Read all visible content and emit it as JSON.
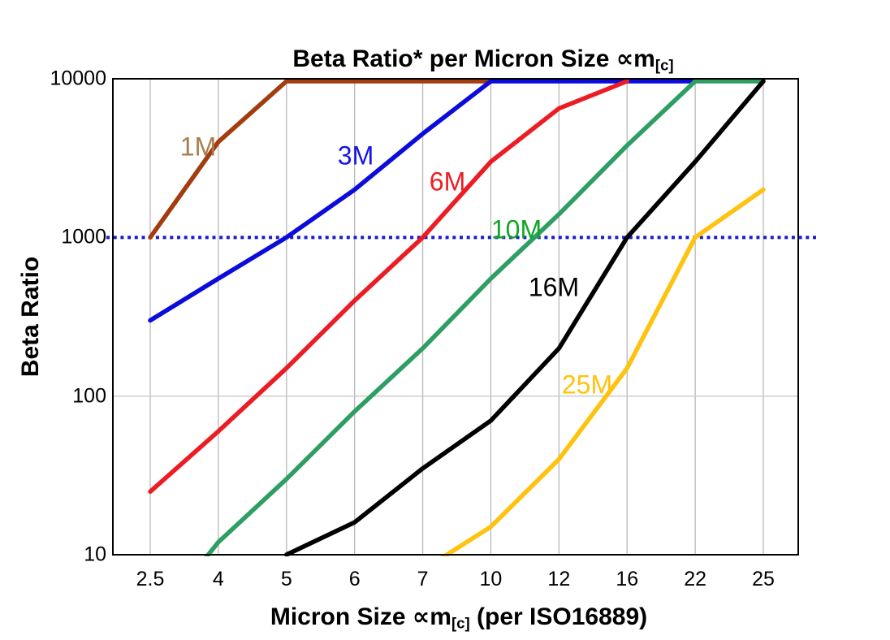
{
  "title": {
    "main": "Beta Ratio* per Micron Size ",
    "symbol": "∝m",
    "subscript": "[c]"
  },
  "axes": {
    "y": {
      "label": "Beta Ratio",
      "ticks": [
        "10000",
        "1000",
        "100",
        "10"
      ]
    },
    "x": {
      "label_pre": "Micron Size ",
      "symbol": "∝m",
      "subscript": "[c]",
      "label_post": " (per ISO16889)",
      "ticks": [
        "2.5",
        "4",
        "5",
        "6",
        "7",
        "10",
        "12",
        "16",
        "22",
        "25"
      ]
    }
  },
  "chart_data": {
    "type": "line",
    "title": "Beta Ratio* per Micron Size ∝m[c]",
    "xlabel": "Micron Size ∝m[c] (per ISO16889)",
    "ylabel": "Beta Ratio",
    "x_categories": [
      2.5,
      4,
      5,
      6,
      7,
      10,
      12,
      16,
      22,
      25
    ],
    "x_axis_type": "categorical-equal-spacing",
    "y_scale": "log",
    "ylim": [
      10,
      10000
    ],
    "grid": {
      "vertical": true,
      "horizontal_at": [
        100
      ]
    },
    "reference_line": {
      "y": 1000,
      "style": "dotted",
      "color": "#1A1ACD"
    },
    "legend_position": "inline-labels-on-lines",
    "series": [
      {
        "name": "1M",
        "color": "#A33C0F",
        "label_color": "#A87C4F",
        "values": [
          1000,
          4000,
          10000,
          10000,
          10000,
          10000,
          null,
          null,
          null,
          null
        ]
      },
      {
        "name": "3M",
        "color": "#0B0BDC",
        "label_color": "#1414E6",
        "values": [
          300,
          550,
          1000,
          2000,
          4500,
          10000,
          10000,
          10000,
          10000,
          null
        ]
      },
      {
        "name": "6M",
        "color": "#EC1C24",
        "label_color": "#EC1C24",
        "values": [
          25,
          60,
          150,
          400,
          1000,
          3000,
          6500,
          15000,
          null,
          null
        ],
        "note": "value at 16 exceeds axis max and is clipped at top"
      },
      {
        "name": "10M",
        "color": "#2E9E62",
        "label_color": "#10A626",
        "values": [
          3.5,
          12,
          30,
          80,
          200,
          550,
          1400,
          3800,
          10000,
          10000
        ],
        "note": "value at 2.5 is below axis min and is clipped at bottom"
      },
      {
        "name": "16M",
        "color": "#000000",
        "label_color": "#000000",
        "values": [
          null,
          null,
          10,
          16,
          35,
          70,
          200,
          1000,
          3000,
          10000
        ]
      },
      {
        "name": "25M",
        "color": "#FFC20E",
        "label_color": "#FFC20E",
        "values": [
          null,
          null,
          null,
          null,
          8,
          15,
          40,
          150,
          1000,
          2000
        ],
        "note": "value at 7 is below axis min and is clipped at bottom"
      }
    ]
  }
}
